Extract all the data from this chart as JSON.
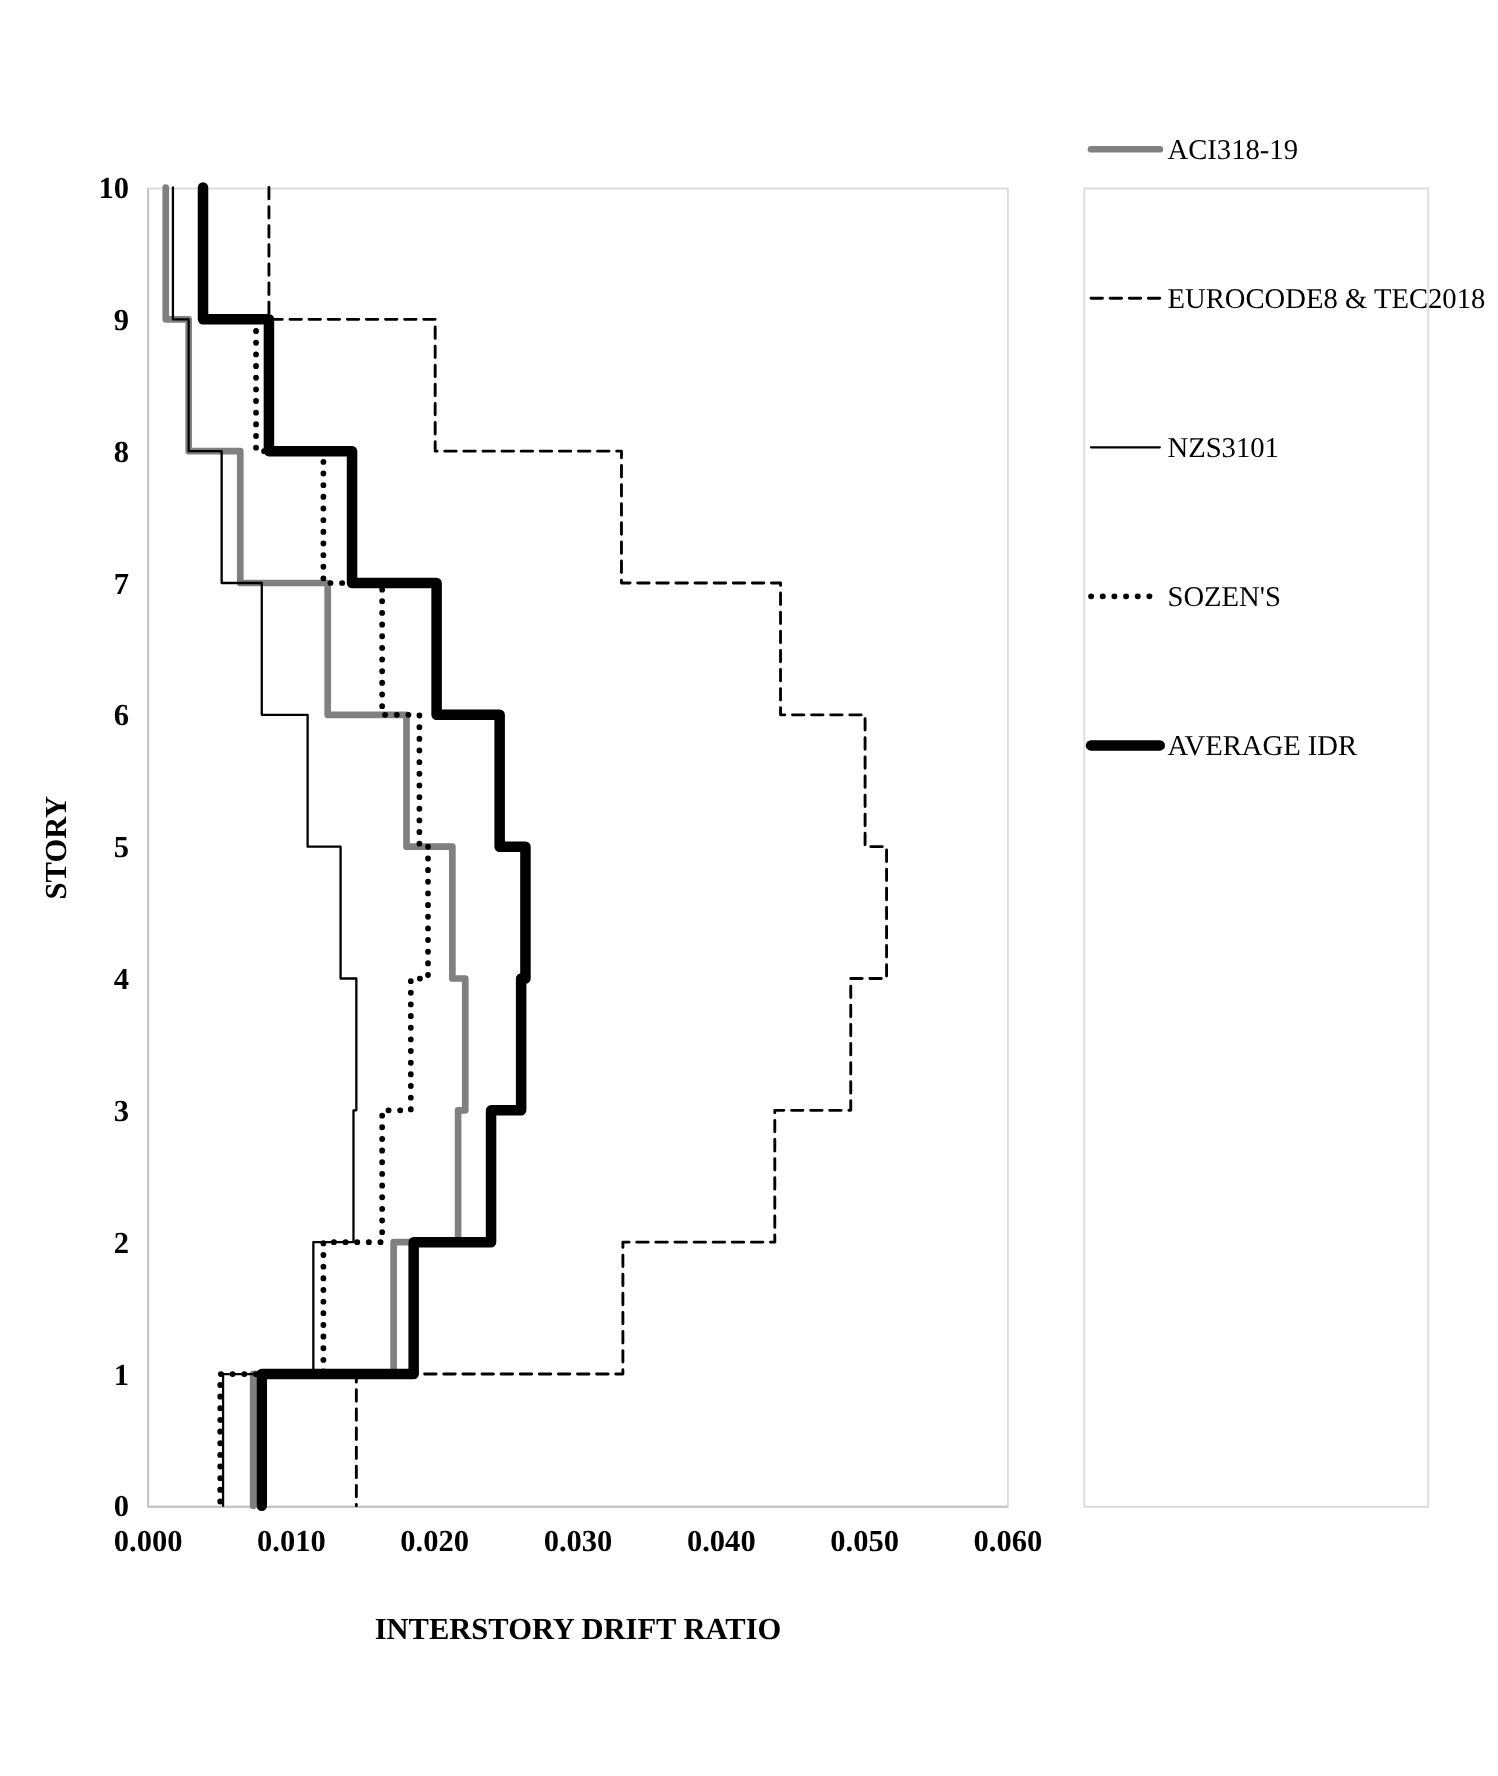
{
  "chart_data": {
    "type": "line",
    "xlabel": "INTERSTORY DRIFT RATIO",
    "ylabel": "STORY",
    "xlim": [
      0,
      0.06
    ],
    "xticks": [
      {
        "value": 0,
        "label": "0.000"
      },
      {
        "value": 0.01,
        "label": "0.010"
      },
      {
        "value": 0.02,
        "label": "0.020"
      },
      {
        "value": 0.03,
        "label": "0.030"
      },
      {
        "value": 0.04,
        "label": "0.040"
      },
      {
        "value": 0.05,
        "label": "0.050"
      },
      {
        "value": 0.06,
        "label": "0.060"
      }
    ],
    "ylim": [
      0,
      10
    ],
    "yticks": [
      0,
      1,
      2,
      3,
      4,
      5,
      6,
      7,
      8,
      9,
      10
    ],
    "grid": false,
    "legend": "right",
    "marker": "none",
    "series": [
      {
        "name": "ACI318-19",
        "color": "#808080",
        "line_style": "solid",
        "x": [
          0.0013,
          0.0013,
          0.0029,
          0.0029,
          0.0065,
          0.0065,
          0.0126,
          0.0126,
          0.0181,
          0.0181,
          0.0213,
          0.0213,
          0.0222,
          0.0222,
          0.0217,
          0.0217,
          0.0172,
          0.0172,
          0.0074,
          0.0074
        ],
        "values": [
          10,
          9,
          9,
          8,
          8,
          7,
          7,
          6,
          6,
          5,
          5,
          4,
          4,
          3,
          3,
          2,
          2,
          1,
          1,
          0
        ]
      },
      {
        "name": "EUROCODE8 & TEC2018",
        "color": "#000000",
        "line_style": "dashed",
        "x": [
          0.0085,
          0.0085,
          0.0201,
          0.0201,
          0.0331,
          0.0331,
          0.0442,
          0.0442,
          0.0501,
          0.0501,
          0.0516,
          0.0516,
          0.0491,
          0.0491,
          0.0438,
          0.0438,
          0.0332,
          0.0332,
          0.0146,
          0.0146
        ],
        "values": [
          10,
          9,
          9,
          8,
          8,
          7,
          7,
          6,
          6,
          5,
          5,
          4,
          4,
          3,
          3,
          2,
          2,
          1,
          1,
          0
        ]
      },
      {
        "name": "NZS3101",
        "color": "#000000",
        "line_style": "solid",
        "x": [
          0.0018,
          0.0018,
          0.0029,
          0.0029,
          0.0052,
          0.0052,
          0.008,
          0.008,
          0.0112,
          0.0112,
          0.0135,
          0.0135,
          0.0146,
          0.0146,
          0.0144,
          0.0144,
          0.0116,
          0.0116,
          0.0053,
          0.0053
        ],
        "values": [
          10,
          9,
          9,
          8,
          8,
          7,
          7,
          6,
          6,
          5,
          5,
          4,
          4,
          3,
          3,
          2,
          2,
          1,
          1,
          0
        ]
      },
      {
        "name": "SOZEN'S",
        "color": "#000000",
        "line_style": "dotted",
        "x": [
          0.0076,
          0.0076,
          0.0123,
          0.0123,
          0.0164,
          0.0164,
          0.019,
          0.019,
          0.0196,
          0.0196,
          0.0184,
          0.0184,
          0.0164,
          0.0164,
          0.0123,
          0.0123,
          0.0051,
          0.0051
        ],
        "values": [
          9,
          8,
          8,
          7,
          7,
          6,
          6,
          5,
          5,
          4,
          4,
          3,
          3,
          2,
          2,
          1,
          1,
          0
        ]
      },
      {
        "name": "AVERAGE IDR",
        "color": "#000000",
        "line_style": "solid",
        "x": [
          0.0039,
          0.0039,
          0.0085,
          0.0085,
          0.0143,
          0.0143,
          0.0202,
          0.0202,
          0.0246,
          0.0246,
          0.0264,
          0.0264,
          0.0261,
          0.0261,
          0.024,
          0.024,
          0.0186,
          0.0186,
          0.008,
          0.008
        ],
        "values": [
          10,
          9,
          9,
          8,
          8,
          7,
          7,
          6,
          6,
          5,
          5,
          4,
          4,
          3,
          3,
          2,
          2,
          1,
          1,
          0
        ]
      }
    ]
  }
}
